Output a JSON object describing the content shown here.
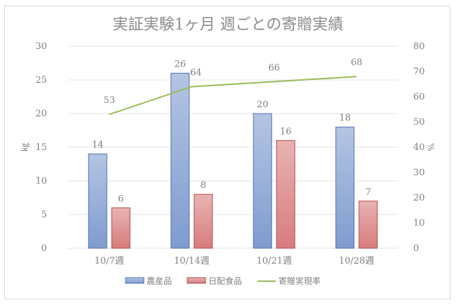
{
  "chart_data": {
    "type": "bar",
    "title": "実証実験1ヶ月 週ごとの寄贈実績",
    "categories": [
      "10/7週",
      "10/14週",
      "10/21週",
      "10/28週"
    ],
    "series": [
      {
        "name": "農産品",
        "type": "bar",
        "axis": "left",
        "values": [
          14,
          26,
          20,
          18
        ],
        "color": "#7f9ccf",
        "color_light": "#b4c5e3",
        "stroke": "#4f72b0"
      },
      {
        "name": "日配食品",
        "type": "bar",
        "axis": "left",
        "values": [
          6,
          8,
          16,
          7
        ],
        "color": "#d77c7c",
        "color_light": "#e9b3b3",
        "stroke": "#b04a4a"
      },
      {
        "name": "寄贈実現率",
        "type": "line",
        "axis": "right",
        "values": [
          53,
          64,
          66,
          68
        ],
        "color": "#9bbb59"
      }
    ],
    "ylabel": "㎏",
    "y2label": "%",
    "ylim": [
      0,
      30
    ],
    "y2lim": [
      0,
      80
    ],
    "yticks": [
      0,
      5,
      10,
      15,
      20,
      25,
      30
    ],
    "y2ticks": [
      0,
      10,
      20,
      30,
      40,
      50,
      60,
      70,
      80
    ],
    "grid": true,
    "legend": "bottom"
  }
}
